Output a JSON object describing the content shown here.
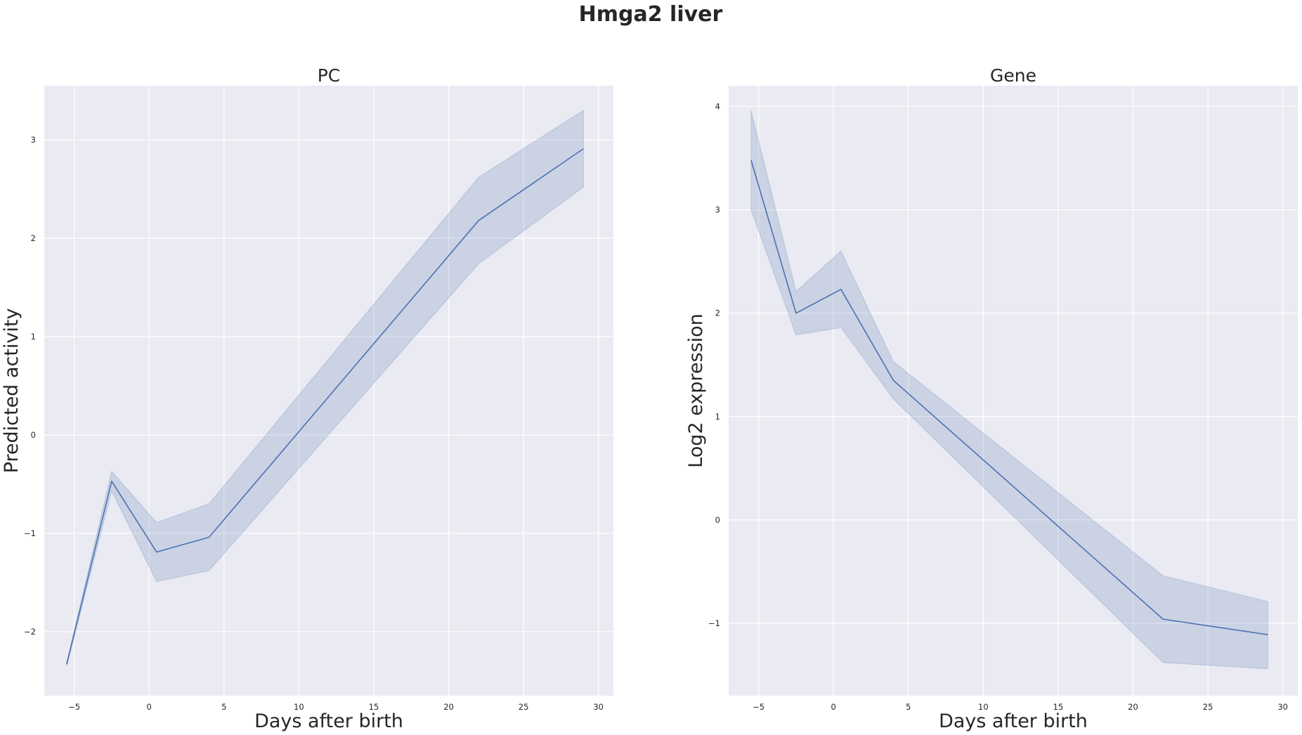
{
  "figure_title": "Hmga2 liver",
  "chart_data": [
    {
      "type": "line",
      "title": "PC",
      "xlabel": "Days after birth",
      "ylabel": "Predicted activity",
      "xlim": [
        -7,
        31
      ],
      "ylim": [
        -2.65,
        3.55
      ],
      "xticks": [
        -5,
        0,
        5,
        10,
        15,
        20,
        25,
        30
      ],
      "xtick_labels": [
        "−5",
        "0",
        "5",
        "10",
        "15",
        "20",
        "25",
        "30"
      ],
      "yticks": [
        -2,
        -1,
        0,
        1,
        2,
        3
      ],
      "ytick_labels": [
        "−2",
        "−1",
        "0",
        "1",
        "2",
        "3"
      ],
      "grid": true,
      "series": [
        {
          "x": [
            -5.5,
            -2.5,
            0.5,
            4,
            22,
            29
          ],
          "y": [
            -2.33,
            -0.47,
            -1.19,
            -1.04,
            2.18,
            2.91
          ],
          "ci_low": [
            -2.35,
            -0.57,
            -1.49,
            -1.38,
            1.74,
            2.52
          ],
          "ci_high": [
            -2.31,
            -0.37,
            -0.89,
            -0.7,
            2.62,
            3.3
          ]
        }
      ],
      "colors": {
        "line": "#4c72b0",
        "band": "#4c72b0",
        "panel_bg": "#eaeaf2",
        "grid": "#ffffff"
      }
    },
    {
      "type": "line",
      "title": "Gene",
      "xlabel": "Days after birth",
      "ylabel": "Log2 expression",
      "xlim": [
        -7,
        31
      ],
      "ylim": [
        -1.7,
        4.2
      ],
      "xticks": [
        -5,
        0,
        5,
        10,
        15,
        20,
        25,
        30
      ],
      "xtick_labels": [
        "−5",
        "0",
        "5",
        "10",
        "15",
        "20",
        "25",
        "30"
      ],
      "yticks": [
        -1,
        0,
        1,
        2,
        3,
        4
      ],
      "ytick_labels": [
        "−1",
        "0",
        "1",
        "2",
        "3",
        "4"
      ],
      "grid": true,
      "series": [
        {
          "x": [
            -5.5,
            -2.5,
            0.5,
            4,
            22,
            29
          ],
          "y": [
            3.48,
            2.0,
            2.23,
            1.35,
            -0.96,
            -1.11
          ],
          "ci_low": [
            3.0,
            1.79,
            1.86,
            1.17,
            -1.38,
            -1.44
          ],
          "ci_high": [
            3.96,
            2.21,
            2.6,
            1.53,
            -0.54,
            -0.79
          ]
        }
      ],
      "colors": {
        "line": "#4c72b0",
        "band": "#4c72b0",
        "panel_bg": "#eaeaf2",
        "grid": "#ffffff"
      }
    }
  ]
}
